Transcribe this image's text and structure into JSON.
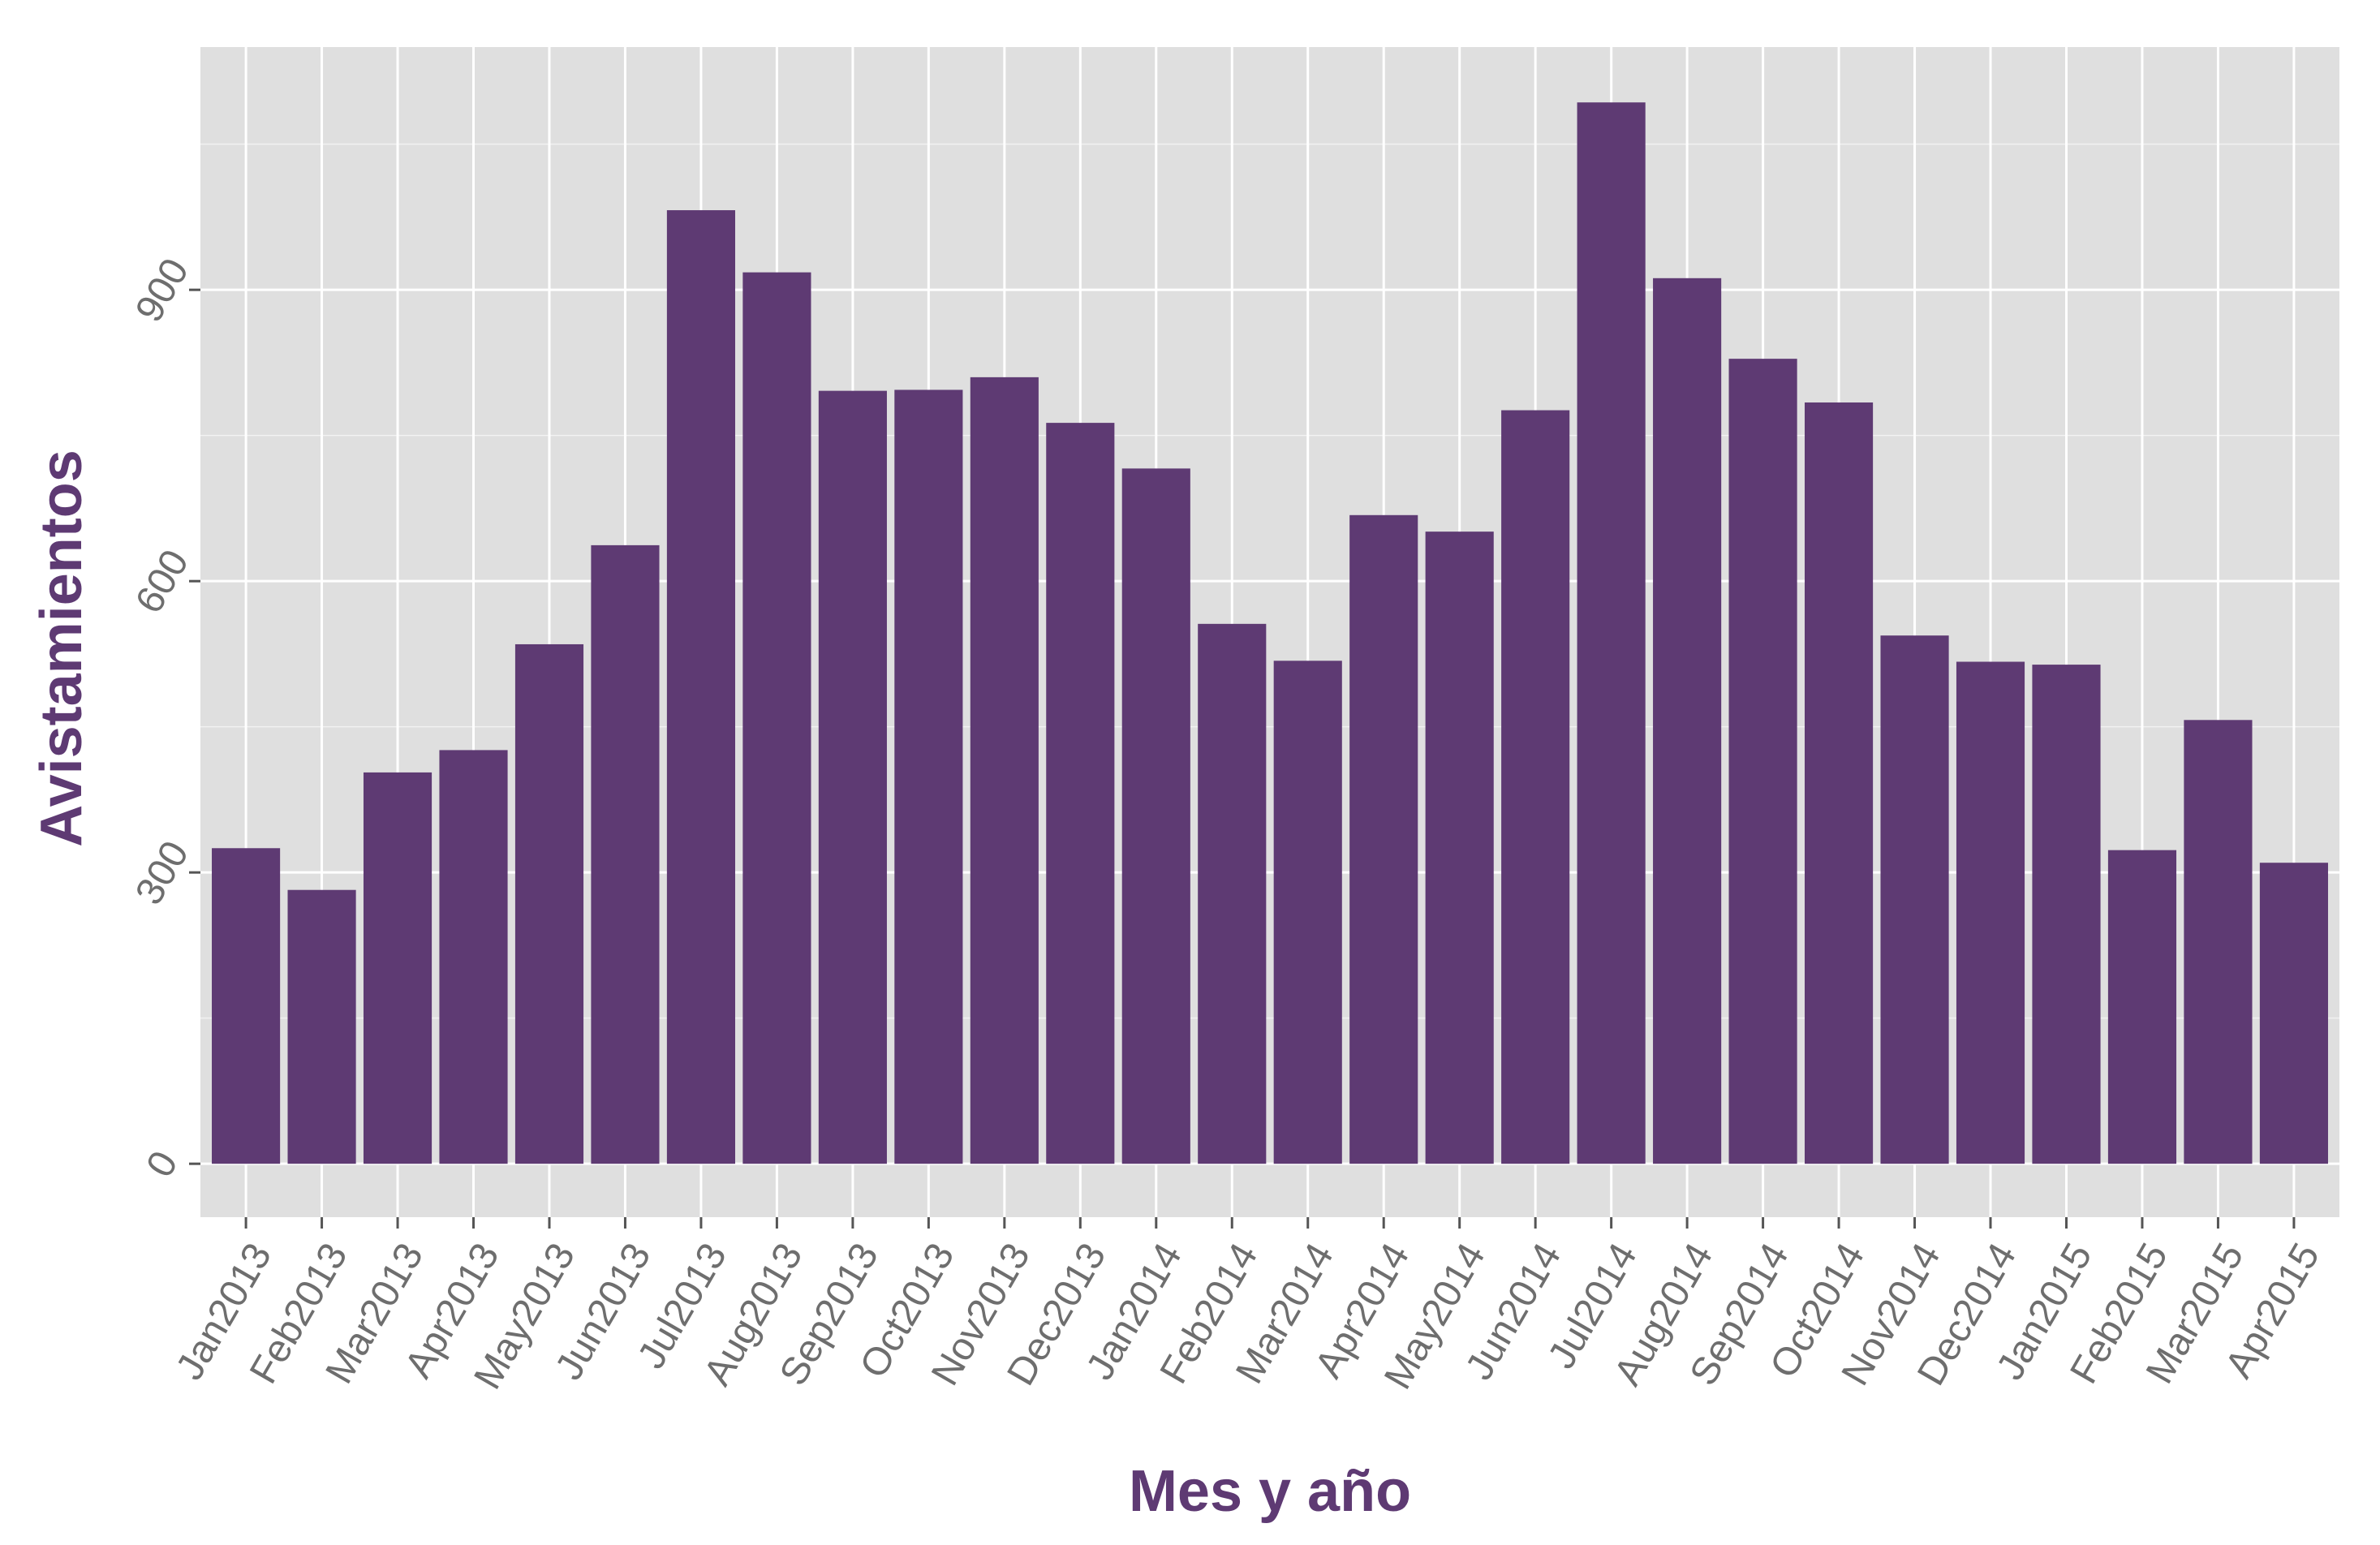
{
  "chart_data": {
    "type": "bar",
    "title": "",
    "xlabel": "Mes y año",
    "ylabel": "Avistamientos",
    "categories": [
      "Jan2013",
      "Feb2013",
      "Mar2013",
      "Apr2013",
      "May2013",
      "Jun2013",
      "Jul2013",
      "Aug2013",
      "Sep2013",
      "Oct2013",
      "Nov2013",
      "Dec2013",
      "Jan2014",
      "Feb2014",
      "Mar2014",
      "Apr2014",
      "May2014",
      "Jun2014",
      "Jul2014",
      "Aug2014",
      "Sep2014",
      "Oct2014",
      "Nov2014",
      "Dec2014",
      "Jan2015",
      "Feb2015",
      "Mar2015",
      "Apr2015"
    ],
    "values": [
      325,
      282,
      403,
      426,
      535,
      637,
      982,
      918,
      796,
      797,
      810,
      763,
      716,
      556,
      518,
      668,
      651,
      776,
      1093,
      912,
      829,
      784,
      544,
      517,
      514,
      323,
      457,
      310
    ],
    "yticks": [
      0,
      300,
      600,
      900
    ],
    "ylim": [
      -55,
      1150
    ],
    "grid": true,
    "legend": "none",
    "colors": {
      "bar": "#5e3a73",
      "panel": "#dfdfdf",
      "grid": "#ffffff",
      "title": "#5e3a73",
      "tick": "#6e6e6e"
    }
  }
}
